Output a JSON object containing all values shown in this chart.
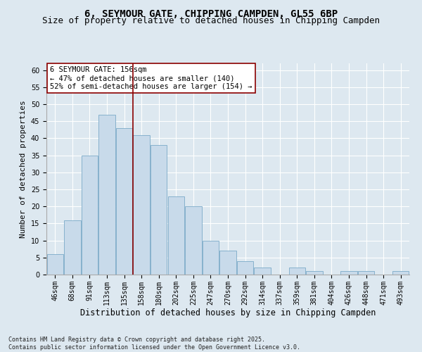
{
  "title1": "6, SEYMOUR GATE, CHIPPING CAMPDEN, GL55 6BP",
  "title2": "Size of property relative to detached houses in Chipping Campden",
  "xlabel": "Distribution of detached houses by size in Chipping Campden",
  "ylabel": "Number of detached properties",
  "categories": [
    "46sqm",
    "68sqm",
    "91sqm",
    "113sqm",
    "135sqm",
    "158sqm",
    "180sqm",
    "202sqm",
    "225sqm",
    "247sqm",
    "270sqm",
    "292sqm",
    "314sqm",
    "337sqm",
    "359sqm",
    "381sqm",
    "404sqm",
    "426sqm",
    "448sqm",
    "471sqm",
    "493sqm"
  ],
  "values": [
    6,
    16,
    35,
    47,
    43,
    41,
    38,
    23,
    20,
    10,
    7,
    4,
    2,
    0,
    2,
    1,
    0,
    1,
    1,
    0,
    1
  ],
  "bar_color": "#c8daea",
  "bar_edge_color": "#7aaac8",
  "vline_color": "#8b0000",
  "annotation_text": "6 SEYMOUR GATE: 156sqm\n← 47% of detached houses are smaller (140)\n52% of semi-detached houses are larger (154) →",
  "annotation_box_color": "#ffffff",
  "annotation_box_edge": "#8b0000",
  "ylim": [
    0,
    62
  ],
  "yticks": [
    0,
    5,
    10,
    15,
    20,
    25,
    30,
    35,
    40,
    45,
    50,
    55,
    60
  ],
  "bg_color": "#dde8f0",
  "footnote": "Contains HM Land Registry data © Crown copyright and database right 2025.\nContains public sector information licensed under the Open Government Licence v3.0.",
  "title_fontsize": 10,
  "subtitle_fontsize": 9,
  "xlabel_fontsize": 8.5,
  "ylabel_fontsize": 8,
  "tick_fontsize": 7,
  "annot_fontsize": 7.5,
  "footnote_fontsize": 6
}
